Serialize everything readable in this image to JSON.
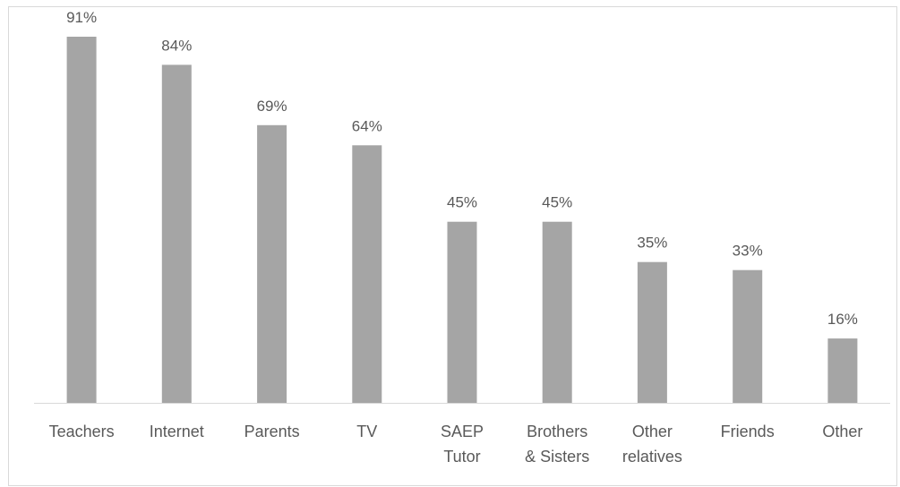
{
  "chart_data": {
    "type": "bar",
    "categories": [
      [
        "Teachers"
      ],
      [
        "Internet"
      ],
      [
        "Parents"
      ],
      [
        "TV"
      ],
      [
        "SAEP",
        "Tutor"
      ],
      [
        "Brothers",
        "& Sisters"
      ],
      [
        "Other",
        "relatives"
      ],
      [
        "Friends"
      ],
      [
        "Other"
      ]
    ],
    "values": [
      91,
      84,
      69,
      64,
      45,
      45,
      35,
      33,
      16
    ],
    "data_labels": [
      "91%",
      "84%",
      "69%",
      "64%",
      "45%",
      "45%",
      "35%",
      "33%",
      "16%"
    ],
    "value_unit": "%",
    "ylim": [
      0,
      100
    ],
    "grid": false,
    "legend": "none",
    "title": "",
    "xlabel": "",
    "ylabel": "",
    "colors": {
      "bar": "#a5a5a5",
      "axis": "#d9d9d9",
      "text": "#595959",
      "frame": "#d9d9d9"
    }
  }
}
